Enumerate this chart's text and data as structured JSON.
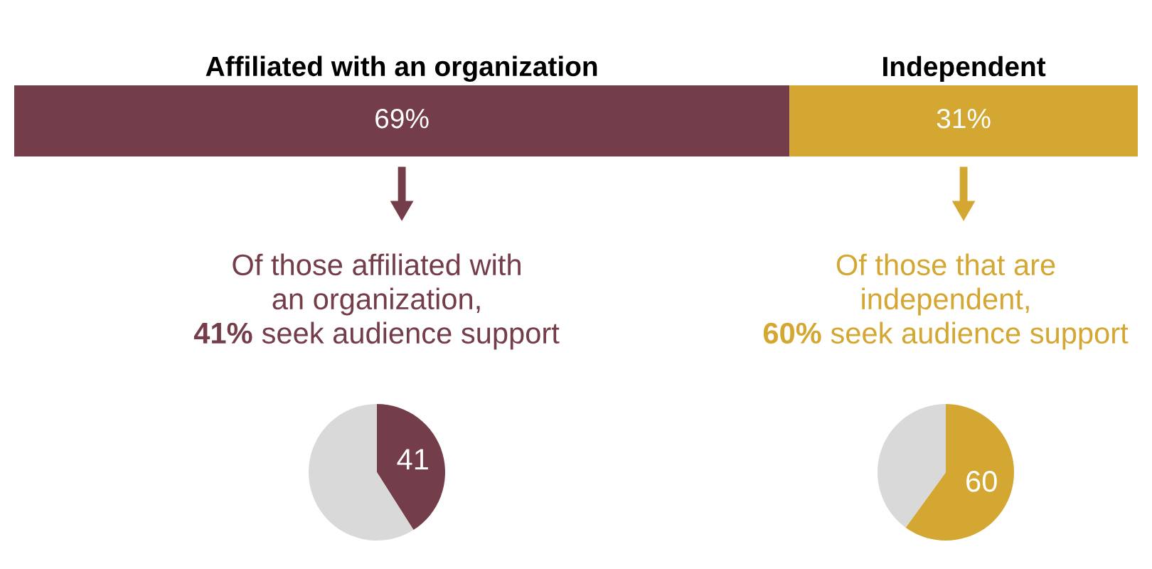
{
  "chart_data": [
    {
      "type": "bar",
      "orientation": "horizontal",
      "stacked": true,
      "categories": [
        null
      ],
      "xlim": [
        0,
        100
      ],
      "tick_labels": false,
      "legend": false,
      "series": [
        {
          "name": "Affiliated with an organization",
          "color": "#733d49",
          "values": [
            69
          ],
          "value_labels": [
            "69%"
          ]
        },
        {
          "name": "Independent",
          "color": "#d3a732",
          "values": [
            31
          ],
          "value_labels": [
            "31%"
          ]
        }
      ]
    },
    {
      "type": "pie",
      "title": "Of those affiliated with\nan organization,\n41% seek audience support",
      "categories": [
        null,
        null
      ],
      "values": [
        41,
        59
      ],
      "colors": [
        "#733d49",
        "#d9d9d9"
      ],
      "value_labels": [
        "41",
        null
      ]
    },
    {
      "type": "pie",
      "title": "Of those that are\nindependent,\n60% seek audience support",
      "categories": [
        null,
        null
      ],
      "values": [
        60,
        40
      ],
      "colors": [
        "#d3a732",
        "#d9d9d9"
      ],
      "value_labels": [
        "60",
        null
      ]
    }
  ]
}
